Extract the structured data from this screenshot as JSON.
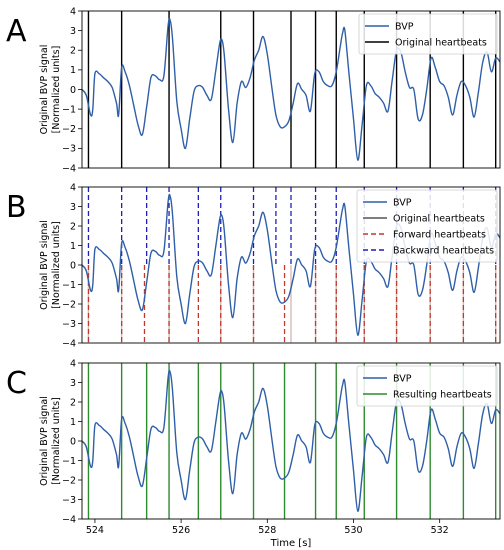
{
  "chart_data": [
    {
      "type": "line",
      "panel_label": "A",
      "ylabel": [
        "Original BVP signal",
        "[Normalized units]"
      ],
      "xlim": [
        523.7,
        533.4
      ],
      "ylim": [
        -4,
        4
      ],
      "yticks": [
        -4,
        -3,
        -2,
        -1,
        0,
        1,
        2,
        3,
        4
      ],
      "xticks": [],
      "xlabel": "",
      "legend_position": "top-right",
      "series": [
        {
          "name": "BVP",
          "kind": "signal",
          "color": "#2f5fa8"
        },
        {
          "name": "Original heartbeats",
          "kind": "beats",
          "color": "#000000",
          "dash": "solid",
          "from": -4,
          "to": 4,
          "x": [
            523.85,
            524.62,
            525.72,
            526.92,
            527.68,
            528.55,
            529.12,
            529.6,
            530.25,
            531.0,
            531.78,
            532.55,
            533.3
          ]
        }
      ]
    },
    {
      "type": "line",
      "panel_label": "B",
      "ylabel": [
        "Original BVP signal",
        "[Normalized units]"
      ],
      "xlim": [
        523.7,
        533.4
      ],
      "ylim": [
        -4,
        4
      ],
      "yticks": [
        -4,
        -3,
        -2,
        -1,
        0,
        1,
        2,
        3,
        4
      ],
      "xticks": [],
      "xlabel": "",
      "legend_position": "top-right",
      "series": [
        {
          "name": "BVP",
          "kind": "signal",
          "color": "#2f5fa8"
        },
        {
          "name": "Original heartbeats",
          "kind": "beats",
          "color": "#d9b8b8",
          "dash": "solid",
          "from": -4,
          "to": 0,
          "x": [
            523.85,
            524.62,
            525.72,
            526.92,
            527.68,
            528.55,
            529.12,
            529.6,
            530.25,
            531.0,
            531.78,
            532.55,
            533.3
          ]
        },
        {
          "name": "Forward heartbeats",
          "kind": "beats",
          "color": "#c0392b",
          "dash": "dashed",
          "from": -4,
          "to": 0,
          "x": [
            523.85,
            524.62,
            525.15,
            525.72,
            526.4,
            526.92,
            527.68,
            528.4,
            529.12,
            529.6,
            530.25,
            531.0,
            531.78,
            532.55,
            533.3
          ]
        },
        {
          "name": "Backward heartbeats",
          "kind": "beats",
          "color": "#1f1fb5",
          "dash": "dashed",
          "from": 0,
          "to": 4,
          "x": [
            523.85,
            524.62,
            525.2,
            525.72,
            526.4,
            526.92,
            527.68,
            528.2,
            528.55,
            529.12,
            529.6,
            530.25,
            531.0,
            531.78,
            532.55,
            533.3
          ]
        }
      ]
    },
    {
      "type": "line",
      "panel_label": "C",
      "ylabel": [
        "Original BVP signal",
        "[Normalized units]"
      ],
      "xlim": [
        523.7,
        533.4
      ],
      "ylim": [
        -4,
        4
      ],
      "yticks": [
        -4,
        -3,
        -2,
        -1,
        0,
        1,
        2,
        3,
        4
      ],
      "xticks": [
        524,
        526,
        528,
        530,
        532
      ],
      "xlabel": "Time [s]",
      "legend_position": "top-right",
      "series": [
        {
          "name": "BVP",
          "kind": "signal",
          "color": "#2f5fa8"
        },
        {
          "name": "Resulting heartbeats",
          "kind": "beats",
          "color": "#2e8b2e",
          "dash": "solid",
          "from": -4,
          "to": 4,
          "x": [
            523.85,
            524.62,
            525.2,
            525.72,
            526.4,
            526.92,
            527.68,
            528.4,
            529.12,
            529.6,
            530.25,
            531.0,
            531.78,
            532.55,
            533.3
          ]
        }
      ]
    }
  ],
  "bvp_signal": {
    "x": [
      523.7,
      523.8,
      523.9,
      523.95,
      524.0,
      524.1,
      524.2,
      524.3,
      524.4,
      524.5,
      524.55,
      524.62,
      524.7,
      524.8,
      524.9,
      525.0,
      525.1,
      525.2,
      525.3,
      525.4,
      525.5,
      525.6,
      525.7,
      525.75,
      525.8,
      525.9,
      526.0,
      526.1,
      526.2,
      526.3,
      526.4,
      526.5,
      526.6,
      526.7,
      526.8,
      526.9,
      526.95,
      527.0,
      527.1,
      527.2,
      527.3,
      527.4,
      527.5,
      527.6,
      527.7,
      527.8,
      527.9,
      528.0,
      528.1,
      528.2,
      528.3,
      528.4,
      528.5,
      528.6,
      528.7,
      528.8,
      528.9,
      529.0,
      529.1,
      529.2,
      529.3,
      529.4,
      529.5,
      529.6,
      529.7,
      529.75,
      529.8,
      529.9,
      530.0,
      530.1,
      530.2,
      530.3,
      530.4,
      530.5,
      530.6,
      530.7,
      530.8,
      530.9,
      531.0,
      531.1,
      531.2,
      531.3,
      531.4,
      531.5,
      531.6,
      531.7,
      531.8,
      531.9,
      532.0,
      532.1,
      532.2,
      532.3,
      532.4,
      532.5,
      532.6,
      532.7,
      532.8,
      532.9,
      533.0,
      533.1,
      533.2,
      533.3,
      533.4
    ],
    "y": [
      0.0,
      -0.3,
      -1.3,
      -1.0,
      0.8,
      0.8,
      0.6,
      0.4,
      0.1,
      -0.7,
      -1.3,
      1.1,
      0.9,
      0.2,
      -0.8,
      -1.8,
      -2.3,
      -0.9,
      0.6,
      0.7,
      0.5,
      0.7,
      3.3,
      3.5,
      2.6,
      -0.6,
      -2.0,
      -3.0,
      -1.5,
      -0.1,
      0.2,
      0.1,
      -0.3,
      -0.5,
      0.9,
      2.4,
      2.5,
      1.8,
      -1.0,
      -2.7,
      -0.7,
      0.4,
      0.1,
      0.6,
      1.5,
      2.0,
      2.7,
      1.8,
      0.2,
      -1.3,
      -1.9,
      -1.9,
      -1.6,
      -0.7,
      0.3,
      0.0,
      -0.3,
      -1.1,
      0.8,
      0.9,
      0.4,
      0.2,
      0.2,
      0.9,
      2.3,
      2.9,
      3.0,
      0.7,
      -1.5,
      -3.6,
      -1.8,
      0.2,
      0.2,
      -0.2,
      -0.4,
      -0.7,
      -1.1,
      0.5,
      2.0,
      1.9,
      0.9,
      0.1,
      0.0,
      -1.5,
      -1.3,
      0.0,
      1.6,
      1.1,
      0.4,
      0.2,
      -0.4,
      -1.3,
      -0.3,
      0.4,
      0.2,
      -0.4,
      -1.4,
      -0.1,
      1.4,
      1.9,
      0.9,
      1.6,
      1.4
    ]
  }
}
